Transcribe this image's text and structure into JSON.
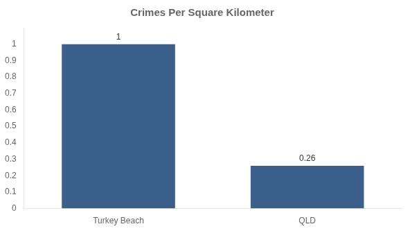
{
  "chart_data": {
    "type": "bar",
    "title": "Crimes Per Square Kilometer",
    "categories": [
      "Turkey Beach",
      "QLD"
    ],
    "values": [
      1,
      0.26
    ],
    "color": "#3a5f8a",
    "ylim": [
      0,
      1.1
    ],
    "yticks": [
      0,
      0.1,
      0.2,
      0.3,
      0.4,
      0.5,
      0.6,
      0.7,
      0.8,
      0.9,
      1
    ],
    "grid": false,
    "data_labels": true
  }
}
